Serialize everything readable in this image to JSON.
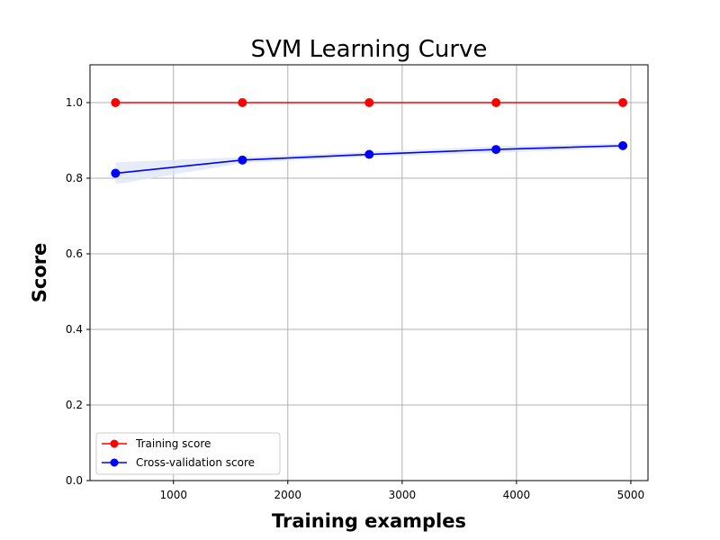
{
  "chart_data": {
    "type": "line",
    "title": "SVM Learning Curve",
    "xlabel": "Training examples",
    "ylabel": "Score",
    "xlim": [
      270,
      5150
    ],
    "ylim": [
      0.0,
      1.1
    ],
    "xticks": [
      1000,
      2000,
      3000,
      4000,
      5000
    ],
    "xtick_labels": [
      "1000",
      "2000",
      "3000",
      "4000",
      "5000"
    ],
    "yticks": [
      0.0,
      0.2,
      0.4,
      0.6,
      0.8,
      1.0
    ],
    "ytick_labels": [
      "0.0",
      "0.2",
      "0.4",
      "0.6",
      "0.8",
      "1.0"
    ],
    "grid": true,
    "legend_position": "lower-left",
    "x": [
      493,
      1603,
      2712,
      3821,
      4930
    ],
    "series": [
      {
        "name": "Training score",
        "color": "#ff0000",
        "marker": "circle",
        "values": [
          1.0,
          1.0,
          1.0,
          1.0,
          1.0
        ],
        "band_lower": [
          1.0,
          1.0,
          1.0,
          1.0,
          1.0
        ],
        "band_upper": [
          1.0,
          1.0,
          1.0,
          1.0,
          1.0
        ]
      },
      {
        "name": "Cross-validation score",
        "color": "#0000ff",
        "marker": "circle",
        "band_color": "#dce6f5",
        "values": [
          0.813,
          0.848,
          0.863,
          0.876,
          0.886
        ],
        "band_lower": [
          0.784,
          0.84,
          0.857,
          0.867,
          0.88
        ],
        "band_upper": [
          0.842,
          0.856,
          0.87,
          0.885,
          0.892
        ]
      }
    ]
  }
}
